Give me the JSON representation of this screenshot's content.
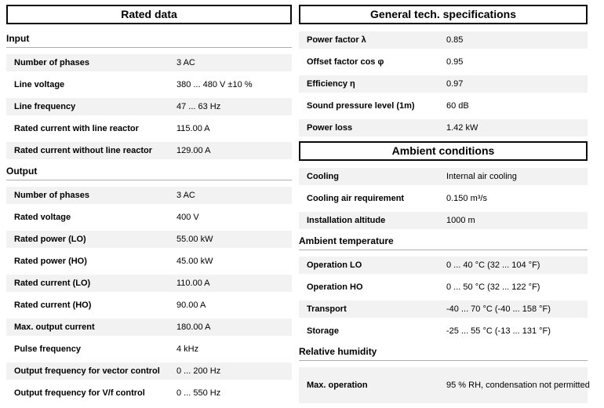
{
  "colors": {
    "row_stripe": "#f2f2f2",
    "panel_border": "#0a0a0a",
    "section_rule": "#b0b0b0",
    "text": "#000000"
  },
  "columns": [
    {
      "name": "left",
      "blocks": [
        {
          "type": "header",
          "text": "Rated data"
        },
        {
          "type": "section",
          "title": "Input",
          "rows": [
            {
              "label": "Number of phases",
              "value": "3 AC"
            },
            {
              "label": "Line voltage",
              "value": "380 ... 480 V ±10 %"
            },
            {
              "label": "Line frequency",
              "value": "47 ... 63 Hz"
            },
            {
              "label": "Rated current with line reactor",
              "value": "115.00 A"
            },
            {
              "label": "Rated current without line reactor",
              "value": "129.00 A"
            }
          ]
        },
        {
          "type": "section",
          "title": "Output",
          "rows": [
            {
              "label": "Number of phases",
              "value": "3 AC"
            },
            {
              "label": "Rated voltage",
              "value": "400 V"
            },
            {
              "label": "Rated power (LO)",
              "value": "55.00 kW"
            },
            {
              "label": "Rated power (HO)",
              "value": "45.00 kW"
            },
            {
              "label": "Rated current (LO)",
              "value": "110.00 A"
            },
            {
              "label": "Rated current (HO)",
              "value": "90.00 A"
            },
            {
              "label": "Max. output current",
              "value": "180.00 A"
            },
            {
              "label": "Pulse frequency",
              "value": "4 kHz"
            },
            {
              "label": "Output frequency for vector control",
              "value": "0 ... 200 Hz"
            },
            {
              "label": "Output frequency for V/f control",
              "value": "0 ... 550 Hz"
            }
          ]
        }
      ]
    },
    {
      "name": "right",
      "blocks": [
        {
          "type": "header",
          "text": "General tech. specifications"
        },
        {
          "type": "section",
          "title": "",
          "rows": [
            {
              "label": "Power factor λ",
              "value": "0.85"
            },
            {
              "label": "Offset factor cos φ",
              "value": "0.95"
            },
            {
              "label": "Efficiency η",
              "value": "0.97"
            },
            {
              "label": "Sound pressure level (1m)",
              "value": "60 dB"
            },
            {
              "label": "Power loss",
              "value": "1.42 kW"
            }
          ]
        },
        {
          "type": "header",
          "text": "Ambient conditions"
        },
        {
          "type": "section",
          "title": "",
          "rows": [
            {
              "label": "Cooling",
              "value": "Internal air cooling"
            },
            {
              "label": "Cooling air requirement",
              "value": "0.150 m³/s"
            },
            {
              "label": "Installation altitude",
              "value": "1000 m"
            }
          ]
        },
        {
          "type": "section",
          "title": "Ambient temperature",
          "rows": [
            {
              "label": "Operation LO",
              "value": "0 ... 40 °C (32 ... 104 °F)"
            },
            {
              "label": "Operation HO",
              "value": "0 ... 50 °C (32 ... 122 °F)"
            },
            {
              "label": "Transport",
              "value": "-40 ... 70 °C (-40 ... 158 °F)"
            },
            {
              "label": "Storage",
              "value": "-25 ... 55 °C (-13 ... 131 °F)"
            }
          ]
        },
        {
          "type": "section",
          "title": "Relative humidity",
          "rows": [
            {
              "label": "Max. operation",
              "value": "95 % RH, condensation not permitted",
              "tall": true
            }
          ]
        }
      ]
    }
  ]
}
